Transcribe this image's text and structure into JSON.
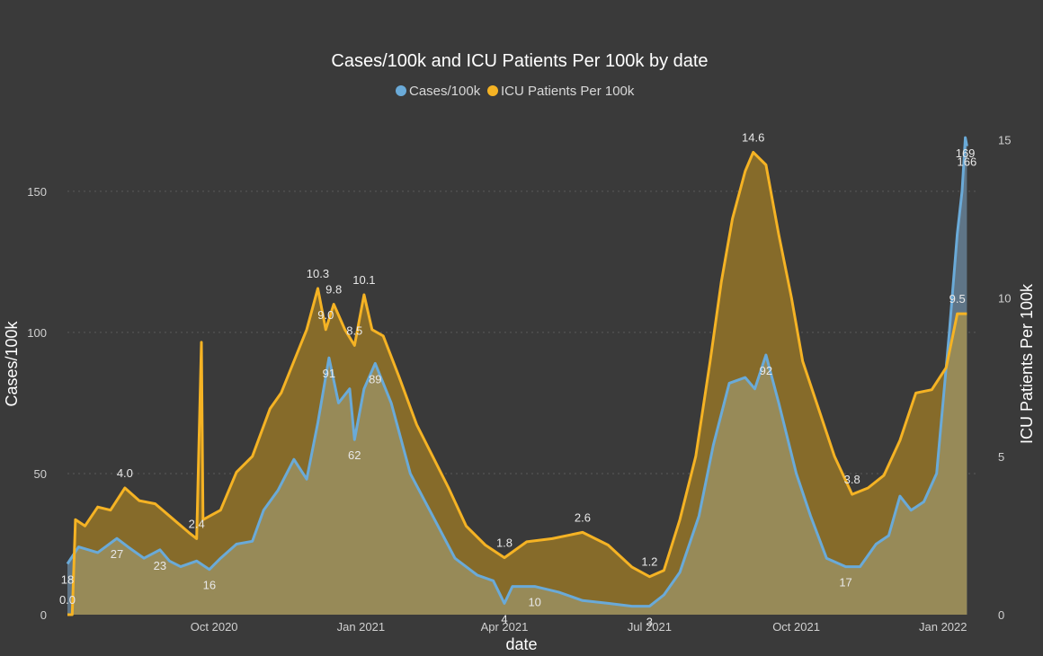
{
  "chart_data": {
    "type": "area",
    "title": "Cases/100k and ICU Patients Per 100k by date",
    "xlabel": "date",
    "ylabel": "Cases/100k",
    "y2label": "ICU Patients Per 100k",
    "ylim": [
      0,
      170
    ],
    "y2lim": [
      0,
      15.15
    ],
    "grid": true,
    "legend_position": "top-center",
    "x_ticks": [
      "Oct 2020",
      "Jan 2021",
      "Apr 2021",
      "Jul 2021",
      "Oct 2021",
      "Jan 2022"
    ],
    "y_ticks": [
      "0",
      "50",
      "100",
      "150"
    ],
    "y2_ticks": [
      "0",
      "5",
      "10",
      "15"
    ],
    "colors": {
      "background": "#3a3a3a",
      "cases": "#6aaad8",
      "cases_fill": "#5f7587",
      "icu": "#f5b324",
      "icu_fill": "#866b2a",
      "overlap_fill": "#978a58",
      "grid": "#5a5a5a"
    },
    "series": [
      {
        "name": "Cases/100k",
        "axis": "left",
        "points": [
          [
            "2020-07-01",
            18
          ],
          [
            "2020-07-08",
            24
          ],
          [
            "2020-07-20",
            22
          ],
          [
            "2020-08-01",
            27
          ],
          [
            "2020-08-08",
            24
          ],
          [
            "2020-08-18",
            20
          ],
          [
            "2020-08-28",
            23
          ],
          [
            "2020-09-03",
            19
          ],
          [
            "2020-09-10",
            17
          ],
          [
            "2020-09-20",
            19
          ],
          [
            "2020-09-28",
            16
          ],
          [
            "2020-10-05",
            20
          ],
          [
            "2020-10-15",
            25
          ],
          [
            "2020-10-25",
            26
          ],
          [
            "2020-11-01",
            37
          ],
          [
            "2020-11-10",
            44
          ],
          [
            "2020-11-20",
            55
          ],
          [
            "2020-11-28",
            48
          ],
          [
            "2020-12-05",
            68
          ],
          [
            "2020-12-12",
            91
          ],
          [
            "2020-12-18",
            75
          ],
          [
            "2020-12-25",
            80
          ],
          [
            "2020-12-28",
            62
          ],
          [
            "2021-01-03",
            80
          ],
          [
            "2021-01-10",
            89
          ],
          [
            "2021-01-20",
            75
          ],
          [
            "2021-02-01",
            50
          ],
          [
            "2021-02-15",
            35
          ],
          [
            "2021-03-01",
            20
          ],
          [
            "2021-03-15",
            14
          ],
          [
            "2021-03-25",
            12
          ],
          [
            "2021-04-01",
            4
          ],
          [
            "2021-04-06",
            10
          ],
          [
            "2021-04-20",
            10
          ],
          [
            "2021-05-05",
            8
          ],
          [
            "2021-05-20",
            5
          ],
          [
            "2021-06-05",
            4
          ],
          [
            "2021-06-20",
            3
          ],
          [
            "2021-07-01",
            3
          ],
          [
            "2021-07-10",
            7
          ],
          [
            "2021-07-20",
            15
          ],
          [
            "2021-08-01",
            35
          ],
          [
            "2021-08-10",
            60
          ],
          [
            "2021-08-20",
            82
          ],
          [
            "2021-08-30",
            84
          ],
          [
            "2021-09-05",
            80
          ],
          [
            "2021-09-12",
            92
          ],
          [
            "2021-09-20",
            75
          ],
          [
            "2021-10-01",
            50
          ],
          [
            "2021-10-10",
            35
          ],
          [
            "2021-10-20",
            20
          ],
          [
            "2021-11-01",
            17
          ],
          [
            "2021-11-10",
            17
          ],
          [
            "2021-11-20",
            25
          ],
          [
            "2021-11-28",
            28
          ],
          [
            "2021-12-05",
            42
          ],
          [
            "2021-12-12",
            37
          ],
          [
            "2021-12-20",
            40
          ],
          [
            "2021-12-28",
            50
          ],
          [
            "2022-01-05",
            100
          ],
          [
            "2022-01-10",
            135
          ],
          [
            "2022-01-13",
            150
          ],
          [
            "2022-01-15",
            169
          ],
          [
            "2022-01-16",
            166
          ]
        ],
        "labels": [
          {
            "date": "2020-07-01",
            "text": "18"
          },
          {
            "date": "2020-08-01",
            "text": "27"
          },
          {
            "date": "2020-08-28",
            "text": "23"
          },
          {
            "date": "2020-09-28",
            "text": "16"
          },
          {
            "date": "2020-12-12",
            "text": "91"
          },
          {
            "date": "2020-12-28",
            "text": "62"
          },
          {
            "date": "2021-01-10",
            "text": "89"
          },
          {
            "date": "2021-04-01",
            "text": "4"
          },
          {
            "date": "2021-04-20",
            "text": "10"
          },
          {
            "date": "2021-07-01",
            "text": "3"
          },
          {
            "date": "2021-09-12",
            "text": "92"
          },
          {
            "date": "2021-11-01",
            "text": "17"
          },
          {
            "date": "2022-01-15",
            "text": "169"
          },
          {
            "date": "2022-01-16",
            "text": "166"
          }
        ]
      },
      {
        "name": "ICU Patients Per 100k",
        "axis": "right",
        "points": [
          [
            "2020-07-01",
            0.0
          ],
          [
            "2020-07-04",
            0.0
          ],
          [
            "2020-07-06",
            3.0
          ],
          [
            "2020-07-12",
            2.8
          ],
          [
            "2020-07-20",
            3.4
          ],
          [
            "2020-07-28",
            3.3
          ],
          [
            "2020-08-06",
            4.0
          ],
          [
            "2020-08-15",
            3.6
          ],
          [
            "2020-08-25",
            3.5
          ],
          [
            "2020-09-01",
            3.2
          ],
          [
            "2020-09-08",
            2.9
          ],
          [
            "2020-09-15",
            2.6
          ],
          [
            "2020-09-20",
            2.4
          ],
          [
            "2020-09-23",
            8.6
          ],
          [
            "2020-09-24",
            3.0
          ],
          [
            "2020-10-05",
            3.3
          ],
          [
            "2020-10-15",
            4.5
          ],
          [
            "2020-10-25",
            5.0
          ],
          [
            "2020-11-05",
            6.5
          ],
          [
            "2020-11-12",
            7.0
          ],
          [
            "2020-11-20",
            8.0
          ],
          [
            "2020-11-28",
            9.0
          ],
          [
            "2020-12-05",
            10.3
          ],
          [
            "2020-12-10",
            9.0
          ],
          [
            "2020-12-15",
            9.8
          ],
          [
            "2020-12-22",
            9.0
          ],
          [
            "2020-12-28",
            8.5
          ],
          [
            "2021-01-03",
            10.1
          ],
          [
            "2021-01-08",
            9.0
          ],
          [
            "2021-01-15",
            8.8
          ],
          [
            "2021-01-25",
            7.5
          ],
          [
            "2021-02-05",
            6.0
          ],
          [
            "2021-02-15",
            5.0
          ],
          [
            "2021-02-25",
            4.0
          ],
          [
            "2021-03-08",
            2.8
          ],
          [
            "2021-03-20",
            2.2
          ],
          [
            "2021-04-01",
            1.8
          ],
          [
            "2021-04-15",
            2.3
          ],
          [
            "2021-05-01",
            2.4
          ],
          [
            "2021-05-20",
            2.6
          ],
          [
            "2021-06-05",
            2.2
          ],
          [
            "2021-06-20",
            1.5
          ],
          [
            "2021-07-01",
            1.2
          ],
          [
            "2021-07-10",
            1.4
          ],
          [
            "2021-07-20",
            3.0
          ],
          [
            "2021-07-30",
            5.0
          ],
          [
            "2021-08-08",
            8.0
          ],
          [
            "2021-08-15",
            10.5
          ],
          [
            "2021-08-22",
            12.5
          ],
          [
            "2021-08-30",
            14.0
          ],
          [
            "2021-09-04",
            14.6
          ],
          [
            "2021-09-12",
            14.2
          ],
          [
            "2021-09-20",
            12.0
          ],
          [
            "2021-09-28",
            10.0
          ],
          [
            "2021-10-05",
            8.0
          ],
          [
            "2021-10-15",
            6.5
          ],
          [
            "2021-10-25",
            5.0
          ],
          [
            "2021-11-05",
            3.8
          ],
          [
            "2021-11-15",
            4.0
          ],
          [
            "2021-11-25",
            4.4
          ],
          [
            "2021-12-05",
            5.5
          ],
          [
            "2021-12-15",
            7.0
          ],
          [
            "2021-12-25",
            7.1
          ],
          [
            "2022-01-03",
            7.8
          ],
          [
            "2022-01-10",
            9.5
          ],
          [
            "2022-01-16",
            9.5
          ]
        ],
        "labels": [
          {
            "date": "2020-07-01",
            "text": "0.0"
          },
          {
            "date": "2020-08-06",
            "text": "4.0"
          },
          {
            "date": "2020-09-20",
            "text": "2.4"
          },
          {
            "date": "2020-12-05",
            "text": "10.3"
          },
          {
            "date": "2020-12-10",
            "text": "9.0"
          },
          {
            "date": "2020-12-15",
            "text": "9.8"
          },
          {
            "date": "2020-12-28",
            "text": "8.5"
          },
          {
            "date": "2021-01-03",
            "text": "10.1"
          },
          {
            "date": "2021-04-01",
            "text": "1.8"
          },
          {
            "date": "2021-05-20",
            "text": "2.6"
          },
          {
            "date": "2021-07-01",
            "text": "1.2"
          },
          {
            "date": "2021-09-04",
            "text": "14.6"
          },
          {
            "date": "2021-11-05",
            "text": "3.8"
          },
          {
            "date": "2022-01-10",
            "text": "9.5"
          }
        ]
      }
    ]
  }
}
